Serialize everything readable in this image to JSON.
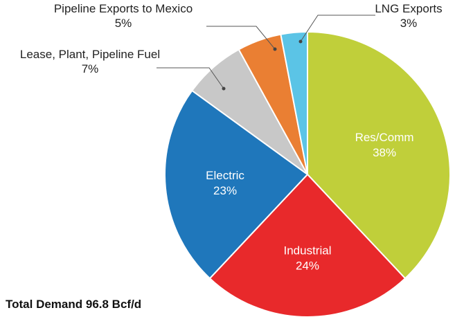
{
  "chart_data": {
    "type": "pie",
    "title": "",
    "note": "Total Demand 96.8 Bcf/d",
    "slices": [
      {
        "label": "Res/Comm",
        "value": 38,
        "value_label": "38%",
        "color": "#c0cf3a",
        "label_position": "inside",
        "label_color": "#ffffff"
      },
      {
        "label": "Industrial",
        "value": 24,
        "value_label": "24%",
        "color": "#e8292b",
        "label_position": "inside",
        "label_color": "#ffffff"
      },
      {
        "label": "Electric",
        "value": 23,
        "value_label": "23%",
        "color": "#1f77bb",
        "label_position": "inside",
        "label_color": "#ffffff"
      },
      {
        "label": "Lease, Plant, Pipeline Fuel",
        "value": 7,
        "value_label": "7%",
        "color": "#c8c8c8",
        "label_position": "outside-left",
        "label_color": "#222222"
      },
      {
        "label": "Pipeline Exports to Mexico",
        "value": 5,
        "value_label": "5%",
        "color": "#ea7f33",
        "label_position": "outside-top",
        "label_color": "#222222"
      },
      {
        "label": "LNG Exports",
        "value": 3,
        "value_label": "3%",
        "color": "#5bc4e6",
        "label_position": "outside-top-right",
        "label_color": "#222222"
      }
    ],
    "start_angle_deg": 0,
    "direction": "clockwise",
    "legend": "none"
  }
}
